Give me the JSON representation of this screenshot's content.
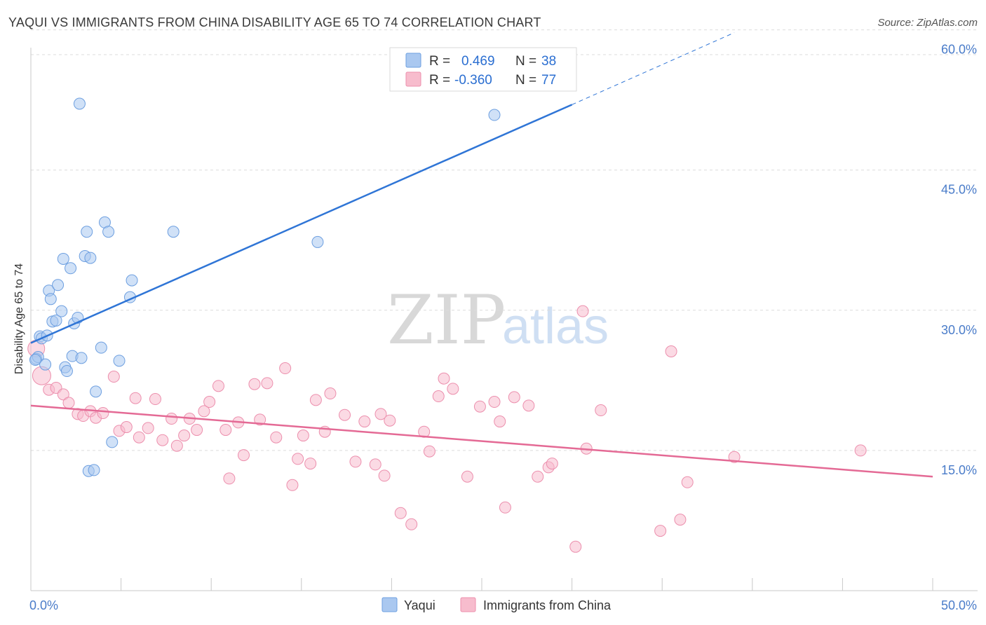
{
  "header": {
    "title": "YAQUI VS IMMIGRANTS FROM CHINA DISABILITY AGE 65 TO 74 CORRELATION CHART",
    "source": "Source: ZipAtlas.com"
  },
  "watermark": {
    "zip": "ZIP",
    "atlas": "atlas"
  },
  "legend": {
    "rows": [
      {
        "r_label": "R =",
        "r_value": "0.469",
        "n_label": "N =",
        "n_value": "38",
        "color": "#aac8f0"
      },
      {
        "r_label": "R =",
        "r_value": "-0.360",
        "n_label": "N =",
        "n_value": "77",
        "color": "#f7bccd"
      }
    ]
  },
  "bottom_legend": [
    {
      "label": "Yaqui",
      "color": "#aac8f0"
    },
    {
      "label": "Immigrants from China",
      "color": "#f7bccd"
    }
  ],
  "chart_data": {
    "type": "scatter",
    "title": "YAQUI VS IMMIGRANTS FROM CHINA DISABILITY AGE 65 TO 74 CORRELATION CHART",
    "ylabel": "Disability Age 65 to 74",
    "xlabel": "",
    "xlim": [
      0,
      50
    ],
    "ylim": [
      0,
      60
    ],
    "x_tick_labels": [
      "0.0%",
      "50.0%"
    ],
    "y_ticks": [
      15,
      30,
      45,
      60
    ],
    "y_tick_labels": [
      "15.0%",
      "30.0%",
      "45.0%",
      "60.0%"
    ],
    "grid": true,
    "series": [
      {
        "name": "Yaqui",
        "color": "#aac8f0",
        "stroke": "#6d9fe0",
        "trend_color": "#2f75d6",
        "trend": {
          "x0": 0,
          "y0": 26.5,
          "x1": 30,
          "y1": 52,
          "dash_to_x": 39,
          "dash_to_y": 59.7
        },
        "points": [
          [
            0.3,
            24.8
          ],
          [
            0.4,
            25.0
          ],
          [
            0.5,
            27.2
          ],
          [
            0.6,
            27.0
          ],
          [
            0.8,
            24.2
          ],
          [
            0.9,
            27.3
          ],
          [
            1.0,
            32.1
          ],
          [
            1.1,
            31.2
          ],
          [
            1.2,
            28.8
          ],
          [
            1.4,
            28.9
          ],
          [
            1.5,
            32.7
          ],
          [
            1.7,
            29.9
          ],
          [
            1.8,
            35.5
          ],
          [
            1.9,
            23.9
          ],
          [
            2.0,
            23.5
          ],
          [
            2.2,
            34.5
          ],
          [
            2.3,
            25.1
          ],
          [
            2.4,
            28.6
          ],
          [
            2.6,
            29.2
          ],
          [
            2.8,
            24.9
          ],
          [
            3.0,
            35.8
          ],
          [
            3.1,
            38.4
          ],
          [
            3.2,
            12.8
          ],
          [
            3.3,
            35.6
          ],
          [
            3.5,
            12.9
          ],
          [
            3.6,
            21.3
          ],
          [
            3.9,
            26.0
          ],
          [
            4.1,
            39.4
          ],
          [
            4.3,
            38.4
          ],
          [
            4.5,
            15.9
          ],
          [
            4.9,
            24.6
          ],
          [
            5.5,
            31.4
          ],
          [
            5.6,
            33.2
          ],
          [
            7.9,
            38.4
          ],
          [
            2.7,
            52.1
          ],
          [
            15.9,
            37.3
          ],
          [
            25.7,
            50.9
          ],
          [
            0.25,
            24.7
          ]
        ]
      },
      {
        "name": "Immigrants from China",
        "color": "#f7bccd",
        "stroke": "#ec8fad",
        "trend_color": "#e46a95",
        "trend": {
          "x0": 0,
          "y0": 19.8,
          "x1": 50,
          "y1": 12.2
        },
        "points": [
          [
            0.3,
            25.9
          ],
          [
            0.6,
            23.0
          ],
          [
            1.0,
            21.5
          ],
          [
            1.4,
            21.7
          ],
          [
            1.8,
            21.0
          ],
          [
            2.1,
            20.1
          ],
          [
            2.6,
            18.9
          ],
          [
            2.9,
            18.7
          ],
          [
            3.3,
            19.2
          ],
          [
            3.6,
            18.5
          ],
          [
            4.0,
            19.0
          ],
          [
            4.6,
            22.9
          ],
          [
            4.9,
            17.1
          ],
          [
            5.3,
            17.5
          ],
          [
            5.8,
            20.6
          ],
          [
            6.0,
            16.4
          ],
          [
            6.5,
            17.4
          ],
          [
            6.9,
            20.5
          ],
          [
            7.3,
            16.1
          ],
          [
            7.8,
            18.4
          ],
          [
            8.1,
            15.5
          ],
          [
            8.5,
            16.6
          ],
          [
            8.8,
            18.4
          ],
          [
            9.2,
            17.2
          ],
          [
            9.6,
            19.2
          ],
          [
            9.9,
            20.2
          ],
          [
            10.4,
            21.9
          ],
          [
            10.8,
            17.2
          ],
          [
            11.0,
            12.0
          ],
          [
            11.5,
            18.0
          ],
          [
            11.8,
            14.5
          ],
          [
            12.4,
            22.1
          ],
          [
            12.7,
            18.3
          ],
          [
            13.1,
            22.2
          ],
          [
            13.6,
            16.4
          ],
          [
            14.1,
            23.8
          ],
          [
            14.5,
            11.3
          ],
          [
            14.8,
            14.1
          ],
          [
            15.1,
            16.6
          ],
          [
            15.5,
            13.6
          ],
          [
            15.8,
            20.4
          ],
          [
            16.3,
            17.0
          ],
          [
            16.6,
            21.1
          ],
          [
            17.4,
            18.8
          ],
          [
            18.0,
            13.8
          ],
          [
            18.5,
            18.1
          ],
          [
            19.1,
            13.5
          ],
          [
            19.4,
            18.9
          ],
          [
            19.6,
            12.3
          ],
          [
            19.9,
            18.2
          ],
          [
            20.5,
            8.3
          ],
          [
            21.1,
            7.1
          ],
          [
            21.8,
            17.0
          ],
          [
            22.1,
            14.9
          ],
          [
            22.6,
            20.8
          ],
          [
            22.9,
            22.7
          ],
          [
            23.4,
            21.6
          ],
          [
            24.2,
            12.2
          ],
          [
            24.9,
            19.7
          ],
          [
            25.7,
            20.2
          ],
          [
            26.0,
            18.1
          ],
          [
            26.3,
            8.9
          ],
          [
            26.8,
            20.7
          ],
          [
            27.6,
            19.8
          ],
          [
            28.1,
            12.2
          ],
          [
            28.7,
            13.2
          ],
          [
            28.9,
            13.6
          ],
          [
            30.2,
            4.7
          ],
          [
            30.6,
            29.9
          ],
          [
            30.8,
            15.2
          ],
          [
            31.6,
            19.3
          ],
          [
            34.9,
            6.4
          ],
          [
            35.5,
            25.6
          ],
          [
            36.0,
            7.6
          ],
          [
            36.4,
            11.6
          ],
          [
            39.0,
            14.3
          ],
          [
            46.0,
            15.0
          ]
        ]
      }
    ]
  }
}
